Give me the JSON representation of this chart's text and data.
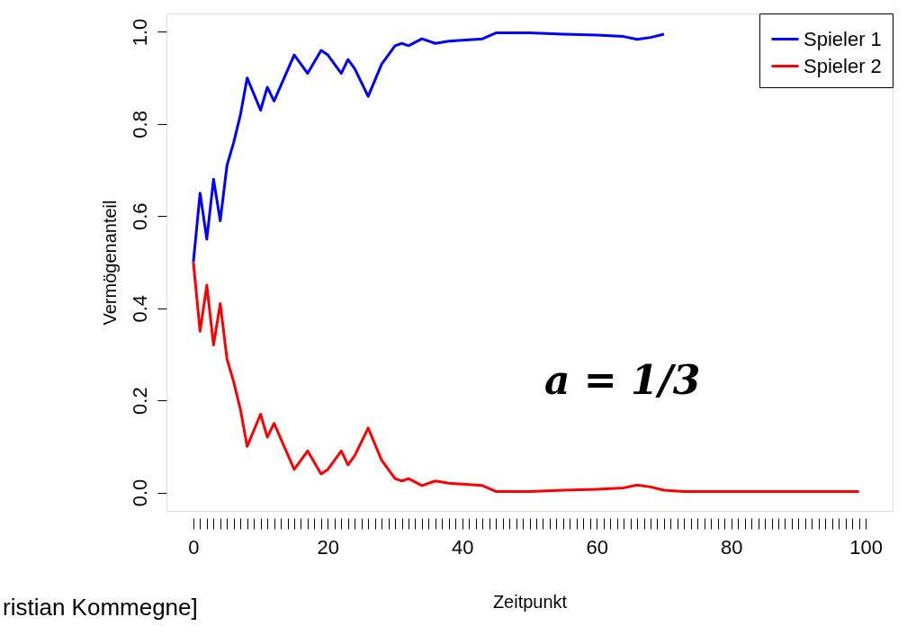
{
  "chart_data": {
    "type": "line",
    "xlabel": "Zeitpunkt",
    "ylabel": "Vermögenanteil",
    "xlim": [
      -4,
      104
    ],
    "ylim": [
      -0.04,
      1.04
    ],
    "xticks": [
      0,
      {
        "value": 1,
        "label": null
      },
      {
        "value": 2,
        "label": null
      },
      {
        "value": 3,
        "label": null
      },
      {
        "value": 4,
        "label": null
      },
      {
        "value": 5,
        "label": null
      },
      {
        "value": 6,
        "label": null
      },
      {
        "value": 7,
        "label": null
      },
      {
        "value": 8,
        "label": null
      },
      {
        "value": 9,
        "label": null
      },
      {
        "value": 10,
        "label": null
      },
      {
        "value": 11,
        "label": null
      },
      {
        "value": 12,
        "label": null
      },
      {
        "value": 13,
        "label": null
      },
      {
        "value": 14,
        "label": null
      },
      {
        "value": 15,
        "label": null
      },
      {
        "value": 16,
        "label": null
      },
      {
        "value": 17,
        "label": null
      },
      {
        "value": 18,
        "label": null
      },
      {
        "value": 19,
        "label": null
      },
      20,
      {
        "value": 21,
        "label": null
      },
      {
        "value": 22,
        "label": null
      },
      {
        "value": 23,
        "label": null
      },
      {
        "value": 24,
        "label": null
      },
      {
        "value": 25,
        "label": null
      },
      {
        "value": 26,
        "label": null
      },
      {
        "value": 27,
        "label": null
      },
      {
        "value": 28,
        "label": null
      },
      {
        "value": 29,
        "label": null
      },
      {
        "value": 30,
        "label": null
      },
      {
        "value": 31,
        "label": null
      },
      {
        "value": 32,
        "label": null
      },
      {
        "value": 33,
        "label": null
      },
      {
        "value": 34,
        "label": null
      },
      {
        "value": 35,
        "label": null
      },
      {
        "value": 36,
        "label": null
      },
      {
        "value": 37,
        "label": null
      },
      {
        "value": 38,
        "label": null
      },
      {
        "value": 39,
        "label": null
      },
      40,
      {
        "value": 41,
        "label": null
      },
      {
        "value": 42,
        "label": null
      },
      {
        "value": 43,
        "label": null
      },
      {
        "value": 44,
        "label": null
      },
      {
        "value": 45,
        "label": null
      },
      {
        "value": 46,
        "label": null
      },
      {
        "value": 47,
        "label": null
      },
      {
        "value": 48,
        "label": null
      },
      {
        "value": 49,
        "label": null
      },
      {
        "value": 50,
        "label": null
      },
      {
        "value": 51,
        "label": null
      },
      {
        "value": 52,
        "label": null
      },
      {
        "value": 53,
        "label": null
      },
      {
        "value": 54,
        "label": null
      },
      {
        "value": 55,
        "label": null
      },
      {
        "value": 56,
        "label": null
      },
      {
        "value": 57,
        "label": null
      },
      {
        "value": 58,
        "label": null
      },
      {
        "value": 59,
        "label": null
      },
      60,
      {
        "value": 61,
        "label": null
      },
      {
        "value": 62,
        "label": null
      },
      {
        "value": 63,
        "label": null
      },
      {
        "value": 64,
        "label": null
      },
      {
        "value": 65,
        "label": null
      },
      {
        "value": 66,
        "label": null
      },
      {
        "value": 67,
        "label": null
      },
      {
        "value": 68,
        "label": null
      },
      {
        "value": 69,
        "label": null
      },
      {
        "value": 70,
        "label": null
      },
      {
        "value": 71,
        "label": null
      },
      {
        "value": 72,
        "label": null
      },
      {
        "value": 73,
        "label": null
      },
      {
        "value": 74,
        "label": null
      },
      {
        "value": 75,
        "label": null
      },
      {
        "value": 76,
        "label": null
      },
      {
        "value": 77,
        "label": null
      },
      {
        "value": 78,
        "label": null
      },
      {
        "value": 79,
        "label": null
      },
      80,
      {
        "value": 81,
        "label": null
      },
      {
        "value": 82,
        "label": null
      },
      {
        "value": 83,
        "label": null
      },
      {
        "value": 84,
        "label": null
      },
      {
        "value": 85,
        "label": null
      },
      {
        "value": 86,
        "label": null
      },
      {
        "value": 87,
        "label": null
      },
      {
        "value": 88,
        "label": null
      },
      {
        "value": 89,
        "label": null
      },
      {
        "value": 90,
        "label": null
      },
      {
        "value": 91,
        "label": null
      },
      {
        "value": 92,
        "label": null
      },
      {
        "value": 93,
        "label": null
      },
      {
        "value": 94,
        "label": null
      },
      {
        "value": 95,
        "label": null
      },
      {
        "value": 96,
        "label": null
      },
      {
        "value": 97,
        "label": null
      },
      {
        "value": 98,
        "label": null
      },
      {
        "value": 99,
        "label": null
      },
      100
    ],
    "yticks": [
      {
        "value": 0,
        "label": "0.0"
      },
      {
        "value": 0.2,
        "label": "0.2"
      },
      {
        "value": 0.4,
        "label": "0.4"
      },
      {
        "value": 0.6,
        "label": "0.6"
      },
      {
        "value": 0.8,
        "label": "0.8"
      },
      {
        "value": 1,
        "label": "1.0"
      }
    ],
    "legend": "top right",
    "grid": false,
    "marker": "none",
    "line_style": "solid",
    "annotations": [
      "a = 1/3",
      "ristian Kommegne]"
    ],
    "series": [
      {
        "name": "Spieler 1",
        "color": "#0000ff",
        "x": [
          0,
          1,
          2,
          3,
          4,
          5,
          6,
          7,
          8,
          10,
          11,
          12,
          15,
          17,
          19,
          20,
          22,
          23,
          24,
          26,
          28,
          30,
          31,
          32,
          34,
          36,
          38,
          40,
          43,
          45,
          50,
          55,
          60,
          64,
          66,
          68,
          70
        ],
        "values": [
          0.5,
          0.65,
          0.55,
          0.68,
          0.59,
          0.71,
          0.76,
          0.82,
          0.9,
          0.83,
          0.88,
          0.85,
          0.95,
          0.91,
          0.96,
          0.95,
          0.91,
          0.94,
          0.92,
          0.86,
          0.93,
          0.97,
          0.975,
          0.97,
          0.985,
          0.975,
          0.98,
          0.982,
          0.985,
          0.998,
          0.998,
          0.995,
          0.993,
          0.99,
          0.984,
          0.988,
          0.995
        ]
      },
      {
        "name": "Spieler 2",
        "color": "#ff0000",
        "x": [
          0,
          1,
          2,
          3,
          4,
          5,
          6,
          7,
          8,
          10,
          11,
          12,
          15,
          17,
          19,
          20,
          22,
          23,
          24,
          26,
          28,
          30,
          31,
          32,
          34,
          36,
          38,
          40,
          43,
          45,
          50,
          55,
          60,
          64,
          66,
          68,
          70,
          73,
          80,
          90,
          99
        ],
        "values": [
          0.5,
          0.35,
          0.45,
          0.32,
          0.41,
          0.29,
          0.24,
          0.18,
          0.1,
          0.17,
          0.12,
          0.15,
          0.05,
          0.09,
          0.04,
          0.05,
          0.09,
          0.06,
          0.08,
          0.14,
          0.07,
          0.03,
          0.025,
          0.03,
          0.015,
          0.025,
          0.02,
          0.018,
          0.015,
          0.002,
          0.002,
          0.005,
          0.007,
          0.01,
          0.016,
          0.012,
          0.005,
          0.002,
          0.002,
          0.002,
          0.002
        ]
      }
    ]
  }
}
